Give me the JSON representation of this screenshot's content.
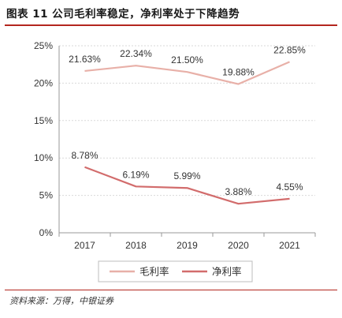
{
  "title": "图表 11 公司毛利率稳定，净利率处于下降趋势",
  "source": "资料来源：万得，中银证券",
  "chart_data": {
    "type": "line",
    "categories": [
      "2017",
      "2018",
      "2019",
      "2020",
      "2021"
    ],
    "series": [
      {
        "name": "毛利率",
        "values": [
          21.63,
          22.34,
          21.5,
          19.88,
          22.85
        ],
        "labels": [
          "21.63%",
          "22.34%",
          "21.50%",
          "19.88%",
          "22.85%"
        ],
        "color": "#e8b0a8"
      },
      {
        "name": "净利率",
        "values": [
          8.78,
          6.19,
          5.99,
          3.88,
          4.55
        ],
        "labels": [
          "8.78%",
          "6.19%",
          "5.99%",
          "3.88%",
          "4.55%"
        ],
        "color": "#d26c6c"
      }
    ],
    "yticks": [
      "0%",
      "5%",
      "10%",
      "15%",
      "20%",
      "25%"
    ],
    "ylim": [
      0,
      25
    ],
    "grid": true,
    "legend": "bottom"
  }
}
